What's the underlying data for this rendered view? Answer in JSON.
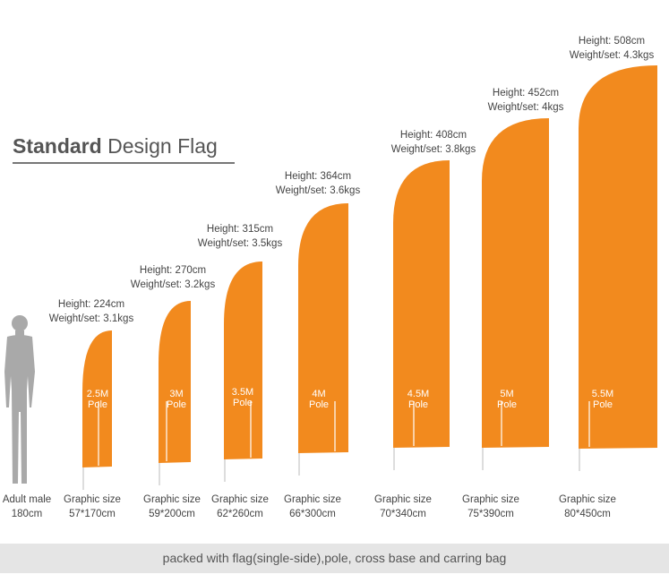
{
  "title": {
    "bold": "Standard",
    "regular": "Design Flag"
  },
  "colors": {
    "flag": "#f28a1e",
    "person": "#a9a9a9",
    "pole": "#dddddd",
    "footer_bg": "#e5e5e5"
  },
  "person": {
    "line1": "Adult male",
    "line2": "180cm"
  },
  "flags": [
    {
      "height": "Height: 224cm",
      "weight": "Weight/set: 3.1kgs",
      "pole1": "2.5M",
      "pole2": "Pole",
      "graphic": "Graphic size",
      "size": "57*170cm"
    },
    {
      "height": "Height: 270cm",
      "weight": "Weight/set: 3.2kgs",
      "pole1": "3M",
      "pole2": "Pole",
      "graphic": "Graphic size",
      "size": "59*200cm"
    },
    {
      "height": "Height: 315cm",
      "weight": "Weight/set: 3.5kgs",
      "pole1": "3.5M",
      "pole2": "Pole",
      "graphic": "Graphic size",
      "size": "62*260cm"
    },
    {
      "height": "Height: 364cm",
      "weight": "Weight/set: 3.6kgs",
      "pole1": "4M",
      "pole2": "Pole",
      "graphic": "Graphic size",
      "size": "66*300cm"
    },
    {
      "height": "Height: 408cm",
      "weight": "Weight/set: 3.8kgs",
      "pole1": "4.5M",
      "pole2": "Pole",
      "graphic": "Graphic size",
      "size": "70*340cm"
    },
    {
      "height": "Height: 452cm",
      "weight": "Weight/set: 4kgs",
      "pole1": "5M",
      "pole2": "Pole",
      "graphic": "Graphic size",
      "size": "75*390cm"
    },
    {
      "height": "Height: 508cm",
      "weight": "Weight/set: 4.3kgs",
      "pole1": "5.5M",
      "pole2": "Pole",
      "graphic": "Graphic size",
      "size": "80*450cm"
    }
  ],
  "footer": "packed with flag(single-side),pole, cross base and carring bag"
}
